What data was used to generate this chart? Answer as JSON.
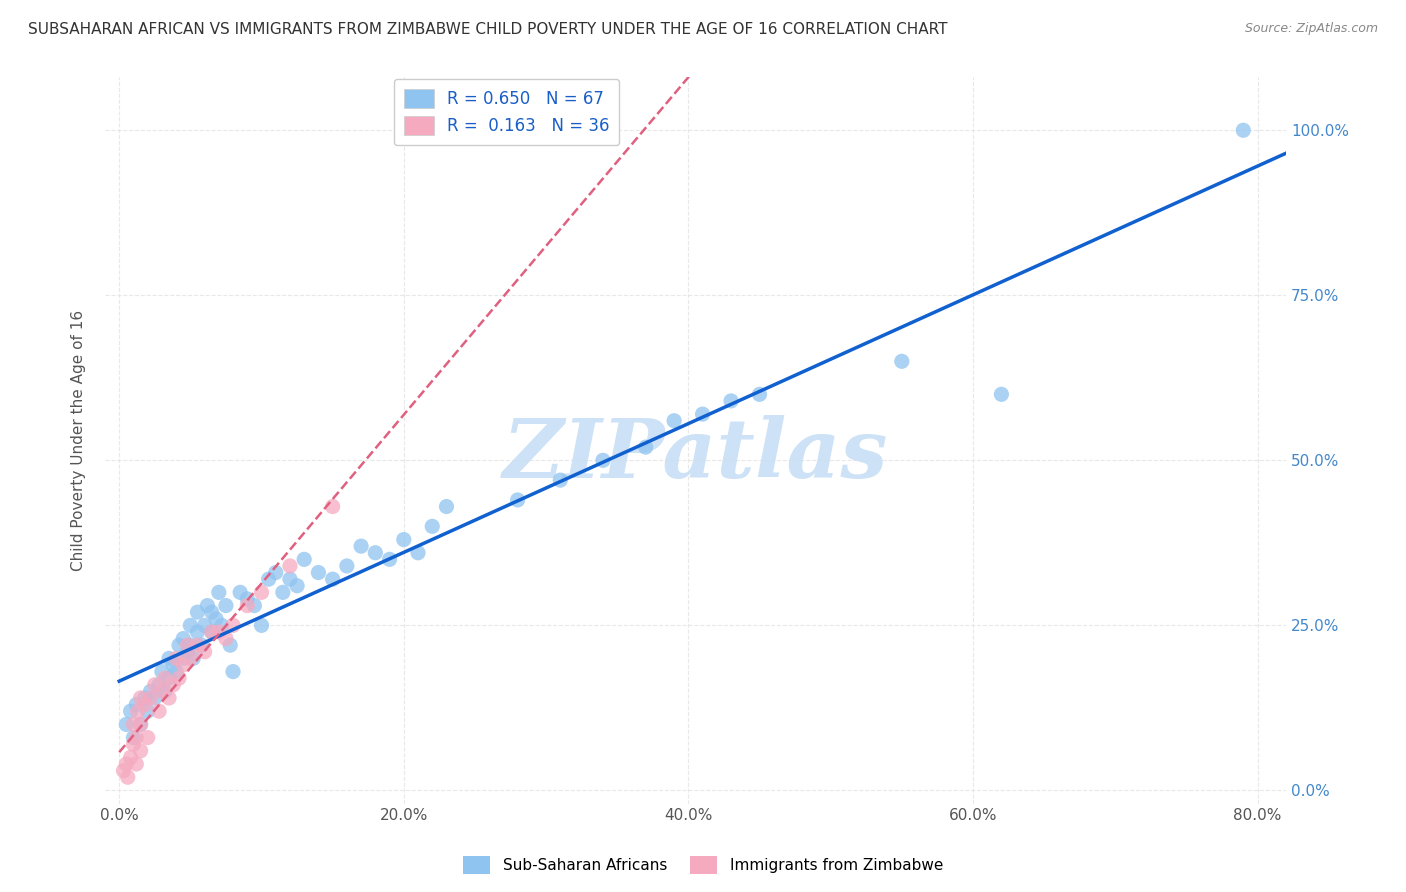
{
  "title": "SUBSAHARAN AFRICAN VS IMMIGRANTS FROM ZIMBABWE CHILD POVERTY UNDER THE AGE OF 16 CORRELATION CHART",
  "source": "Source: ZipAtlas.com",
  "xlabel_ticks": [
    "0.0%",
    "20.0%",
    "40.0%",
    "60.0%",
    "80.0%"
  ],
  "ylabel_ticks_right": [
    "0.0%",
    "25.0%",
    "50.0%",
    "75.0%",
    "100.0%"
  ],
  "xlim": [
    -0.01,
    0.82
  ],
  "ylim": [
    -0.02,
    1.08
  ],
  "ylabel": "Child Poverty Under the Age of 16",
  "legend_label1": "R = 0.650   N = 67",
  "legend_label2": "R =  0.163   N = 36",
  "series1_color": "#90c4f0",
  "series2_color": "#f5aac0",
  "line1_color": "#1060d0",
  "line2_color": "#e06080",
  "watermark": "ZIPatlas",
  "watermark_color": "#c8dff5",
  "background_color": "#ffffff",
  "grid_color": "#e8e8e8",
  "scatter1_x": [
    0.005,
    0.008,
    0.01,
    0.012,
    0.015,
    0.018,
    0.02,
    0.022,
    0.025,
    0.028,
    0.03,
    0.032,
    0.035,
    0.035,
    0.038,
    0.04,
    0.042,
    0.045,
    0.045,
    0.048,
    0.05,
    0.05,
    0.052,
    0.055,
    0.055,
    0.058,
    0.06,
    0.062,
    0.065,
    0.065,
    0.068,
    0.07,
    0.072,
    0.075,
    0.078,
    0.08,
    0.085,
    0.09,
    0.095,
    0.1,
    0.105,
    0.11,
    0.115,
    0.12,
    0.125,
    0.13,
    0.14,
    0.15,
    0.16,
    0.17,
    0.18,
    0.19,
    0.2,
    0.21,
    0.22,
    0.23,
    0.28,
    0.31,
    0.34,
    0.37,
    0.39,
    0.41,
    0.43,
    0.45,
    0.55,
    0.62,
    0.79
  ],
  "scatter1_y": [
    0.1,
    0.12,
    0.08,
    0.13,
    0.1,
    0.14,
    0.12,
    0.15,
    0.14,
    0.16,
    0.18,
    0.15,
    0.17,
    0.2,
    0.19,
    0.18,
    0.22,
    0.2,
    0.23,
    0.21,
    0.22,
    0.25,
    0.2,
    0.24,
    0.27,
    0.22,
    0.25,
    0.28,
    0.24,
    0.27,
    0.26,
    0.3,
    0.25,
    0.28,
    0.22,
    0.18,
    0.3,
    0.29,
    0.28,
    0.25,
    0.32,
    0.33,
    0.3,
    0.32,
    0.31,
    0.35,
    0.33,
    0.32,
    0.34,
    0.37,
    0.36,
    0.35,
    0.38,
    0.36,
    0.4,
    0.43,
    0.44,
    0.47,
    0.5,
    0.52,
    0.56,
    0.57,
    0.59,
    0.6,
    0.65,
    0.6,
    1.0
  ],
  "scatter2_x": [
    0.003,
    0.005,
    0.006,
    0.008,
    0.01,
    0.01,
    0.012,
    0.012,
    0.013,
    0.015,
    0.015,
    0.015,
    0.018,
    0.02,
    0.022,
    0.025,
    0.028,
    0.03,
    0.032,
    0.035,
    0.038,
    0.04,
    0.042,
    0.045,
    0.048,
    0.05,
    0.055,
    0.06,
    0.065,
    0.07,
    0.075,
    0.08,
    0.09,
    0.1,
    0.12,
    0.15
  ],
  "scatter2_y": [
    0.03,
    0.04,
    0.02,
    0.05,
    0.07,
    0.1,
    0.04,
    0.08,
    0.12,
    0.06,
    0.1,
    0.14,
    0.13,
    0.08,
    0.14,
    0.16,
    0.12,
    0.15,
    0.17,
    0.14,
    0.16,
    0.2,
    0.17,
    0.19,
    0.22,
    0.2,
    0.22,
    0.21,
    0.24,
    0.24,
    0.23,
    0.25,
    0.28,
    0.3,
    0.34,
    0.43
  ]
}
